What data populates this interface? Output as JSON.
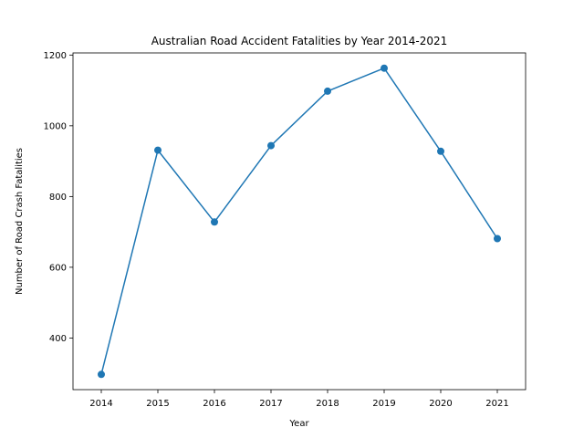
{
  "chart_data": {
    "type": "line",
    "title": "Australian Road Accident Fatalities by Year 2014-2021",
    "xlabel": "Year",
    "ylabel": "Number of Road Crash Fatalities",
    "x": [
      2014,
      2015,
      2016,
      2017,
      2018,
      2019,
      2020,
      2021
    ],
    "series": [
      {
        "values": [
          297,
          931,
          728,
          944,
          1098,
          1163,
          928,
          681
        ]
      }
    ],
    "xlim": [
      2013.5,
      2021.5
    ],
    "ylim": [
      254,
      1206
    ],
    "xticks": [
      "2014",
      "2015",
      "2016",
      "2017",
      "2018",
      "2019",
      "2020",
      "2021"
    ],
    "yticks": [
      "400",
      "600",
      "800",
      "1000",
      "1200"
    ],
    "grid": false,
    "legend": "none",
    "colors": {
      "line": "#1f77b4",
      "marker": "#1f77b4",
      "axes": "#000000"
    }
  }
}
